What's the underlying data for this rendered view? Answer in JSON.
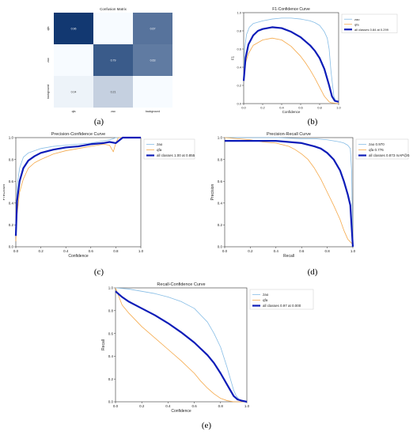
{
  "captions": {
    "a": "(a)",
    "b": "(b)",
    "c": "(c)",
    "d": "(d)",
    "e": "(e)"
  },
  "chart_data": [
    {
      "id": "a",
      "type": "heatmap",
      "title": "Confusion Matrix",
      "xlabel": "",
      "ylabel": "",
      "categories": [
        "qfa",
        "zao",
        "background"
      ],
      "values": [
        [
          0.96,
          0.0,
          0.67
        ],
        [
          0.0,
          0.79,
          0.63
        ],
        [
          0.04,
          0.21,
          0.0
        ]
      ],
      "color_scale": [
        "#f7fbff",
        "#08306b"
      ]
    },
    {
      "id": "b",
      "type": "line",
      "title": "F1-Confidence Curve",
      "xlabel": "Confidence",
      "ylabel": "F1",
      "xlim": [
        0,
        1
      ],
      "ylim": [
        0,
        1
      ],
      "xticks": [
        "0.0",
        "0.2",
        "0.4",
        "0.6",
        "0.8",
        "1.0"
      ],
      "yticks": [
        "0.0",
        "0.2",
        "0.4",
        "0.6",
        "0.8",
        "1.0"
      ],
      "series": [
        {
          "name": "zao",
          "color": "#87bde6",
          "width": 0.8,
          "x": [
            0,
            0.01,
            0.03,
            0.06,
            0.1,
            0.2,
            0.3,
            0.4,
            0.5,
            0.6,
            0.7,
            0.75,
            0.8,
            0.85,
            0.88,
            0.9,
            0.92,
            0.95,
            0.97,
            1.0
          ],
          "y": [
            0.28,
            0.6,
            0.76,
            0.84,
            0.88,
            0.91,
            0.93,
            0.94,
            0.94,
            0.93,
            0.91,
            0.89,
            0.86,
            0.79,
            0.72,
            0.6,
            0.35,
            0.08,
            0.03,
            0.02
          ]
        },
        {
          "name": "qfa",
          "color": "#f5a94a",
          "width": 0.8,
          "x": [
            0,
            0.02,
            0.05,
            0.1,
            0.2,
            0.3,
            0.4,
            0.5,
            0.6,
            0.65,
            0.7,
            0.75,
            0.8,
            0.85,
            0.9,
            0.92,
            1.0
          ],
          "y": [
            0.25,
            0.45,
            0.55,
            0.64,
            0.7,
            0.72,
            0.7,
            0.63,
            0.52,
            0.45,
            0.37,
            0.28,
            0.18,
            0.08,
            0.02,
            0.01,
            0.0
          ]
        },
        {
          "name": "all classes 0.84 at 0.299",
          "color": "#0d1cb8",
          "width": 2.2,
          "x": [
            0,
            0.02,
            0.05,
            0.1,
            0.15,
            0.2,
            0.3,
            0.4,
            0.5,
            0.6,
            0.7,
            0.75,
            0.8,
            0.85,
            0.9,
            0.93,
            0.96,
            1.0
          ],
          "y": [
            0.25,
            0.5,
            0.65,
            0.75,
            0.8,
            0.82,
            0.84,
            0.83,
            0.79,
            0.73,
            0.64,
            0.58,
            0.5,
            0.38,
            0.2,
            0.08,
            0.03,
            0.02
          ]
        }
      ],
      "legend": "top-right",
      "grid": false
    },
    {
      "id": "c",
      "type": "line",
      "title": "Precision-Confidence Curve",
      "xlabel": "Confidence",
      "ylabel": "Precision",
      "xlim": [
        0,
        1
      ],
      "ylim": [
        0,
        1
      ],
      "xticks": [
        "0.0",
        "0.2",
        "0.4",
        "0.6",
        "0.8",
        "1.0"
      ],
      "yticks": [
        "0.0",
        "0.2",
        "0.4",
        "0.6",
        "0.8",
        "1.0"
      ],
      "series": [
        {
          "name": "zao",
          "color": "#87bde6",
          "width": 0.8,
          "x": [
            0,
            0.01,
            0.03,
            0.06,
            0.1,
            0.2,
            0.3,
            0.4,
            0.5,
            0.6,
            0.7,
            0.75,
            0.78,
            0.8,
            1.0
          ],
          "y": [
            0.18,
            0.55,
            0.72,
            0.82,
            0.86,
            0.9,
            0.92,
            0.93,
            0.94,
            0.95,
            0.97,
            0.98,
            0.99,
            1.0,
            1.0
          ]
        },
        {
          "name": "qfa",
          "color": "#f5a94a",
          "width": 0.8,
          "x": [
            0,
            0.01,
            0.03,
            0.06,
            0.1,
            0.15,
            0.2,
            0.3,
            0.4,
            0.5,
            0.6,
            0.7,
            0.75,
            0.78,
            0.8,
            0.82,
            1.0
          ],
          "y": [
            0.05,
            0.3,
            0.5,
            0.62,
            0.72,
            0.77,
            0.8,
            0.85,
            0.88,
            0.9,
            0.92,
            0.94,
            0.93,
            0.87,
            0.95,
            1.0,
            1.0
          ]
        },
        {
          "name": "all classes 1.00 at 0.855",
          "color": "#0d1cb8",
          "width": 2.2,
          "x": [
            0,
            0.01,
            0.03,
            0.06,
            0.1,
            0.15,
            0.2,
            0.3,
            0.4,
            0.5,
            0.6,
            0.7,
            0.75,
            0.8,
            0.855,
            1.0
          ],
          "y": [
            0.1,
            0.42,
            0.6,
            0.72,
            0.79,
            0.83,
            0.86,
            0.89,
            0.91,
            0.92,
            0.94,
            0.95,
            0.96,
            0.95,
            1.0,
            1.0
          ]
        }
      ],
      "legend": "top-right",
      "grid": false
    },
    {
      "id": "d",
      "type": "line",
      "title": "Precision-Recall Curve",
      "xlabel": "Recall",
      "ylabel": "Precision",
      "xlim": [
        0,
        1
      ],
      "ylim": [
        0,
        1
      ],
      "xticks": [
        "0.0",
        "0.2",
        "0.4",
        "0.6",
        "0.8",
        "1.0"
      ],
      "yticks": [
        "0.0",
        "0.2",
        "0.4",
        "0.6",
        "0.8",
        "1.0"
      ],
      "series": [
        {
          "name": "zao 0.970",
          "color": "#87bde6",
          "width": 0.8,
          "x": [
            0,
            0.2,
            0.4,
            0.6,
            0.7,
            0.8,
            0.85,
            0.9,
            0.93,
            0.96,
            0.98,
            0.99,
            1.0
          ],
          "y": [
            1.0,
            1.0,
            1.0,
            0.99,
            0.99,
            0.98,
            0.97,
            0.96,
            0.95,
            0.93,
            0.9,
            0.7,
            0.0
          ]
        },
        {
          "name": "qfa 0.776",
          "color": "#f5a94a",
          "width": 0.8,
          "x": [
            0,
            0.1,
            0.2,
            0.3,
            0.4,
            0.5,
            0.55,
            0.6,
            0.65,
            0.7,
            0.75,
            0.8,
            0.85,
            0.9,
            0.93,
            0.96,
            1.0
          ],
          "y": [
            1.0,
            0.99,
            0.98,
            0.96,
            0.95,
            0.92,
            0.89,
            0.85,
            0.8,
            0.72,
            0.62,
            0.5,
            0.38,
            0.25,
            0.15,
            0.07,
            0.02
          ]
        },
        {
          "name": "all classes 0.873 mAP@0.5",
          "color": "#0d1cb8",
          "width": 2.2,
          "x": [
            0,
            0.2,
            0.4,
            0.5,
            0.6,
            0.7,
            0.75,
            0.8,
            0.85,
            0.9,
            0.93,
            0.96,
            0.98,
            1.0
          ],
          "y": [
            0.97,
            0.97,
            0.97,
            0.96,
            0.95,
            0.92,
            0.9,
            0.86,
            0.8,
            0.7,
            0.6,
            0.48,
            0.38,
            0.0
          ]
        }
      ],
      "legend": "top-right",
      "grid": false
    },
    {
      "id": "e",
      "type": "line",
      "title": "Recall-Confidence Curve",
      "xlabel": "Confidence",
      "ylabel": "Recall",
      "xlim": [
        0,
        1
      ],
      "ylim": [
        0,
        1
      ],
      "xticks": [
        "0.0",
        "0.2",
        "0.4",
        "0.6",
        "0.8",
        "1.0"
      ],
      "yticks": [
        "0.0",
        "0.2",
        "0.4",
        "0.6",
        "0.8",
        "1.0"
      ],
      "series": [
        {
          "name": "zao",
          "color": "#87bde6",
          "width": 0.8,
          "x": [
            0,
            0.1,
            0.2,
            0.3,
            0.4,
            0.5,
            0.6,
            0.7,
            0.75,
            0.8,
            0.85,
            0.88,
            0.9,
            0.92,
            0.95,
            1.0
          ],
          "y": [
            1.0,
            0.99,
            0.97,
            0.95,
            0.92,
            0.88,
            0.82,
            0.7,
            0.6,
            0.48,
            0.3,
            0.18,
            0.1,
            0.05,
            0.01,
            0.0
          ]
        },
        {
          "name": "qfa",
          "color": "#f5a94a",
          "width": 0.8,
          "x": [
            0,
            0.05,
            0.1,
            0.2,
            0.3,
            0.4,
            0.5,
            0.6,
            0.65,
            0.7,
            0.75,
            0.8,
            0.85,
            0.9,
            1.0
          ],
          "y": [
            1.0,
            0.85,
            0.78,
            0.66,
            0.56,
            0.46,
            0.36,
            0.25,
            0.18,
            0.12,
            0.07,
            0.03,
            0.01,
            0.0,
            0.0
          ]
        },
        {
          "name": "all classes 0.97 at 0.000",
          "color": "#0d1cb8",
          "width": 2.2,
          "x": [
            0,
            0.05,
            0.1,
            0.2,
            0.3,
            0.4,
            0.5,
            0.6,
            0.7,
            0.75,
            0.8,
            0.85,
            0.88,
            0.9,
            0.93,
            0.96,
            1.0
          ],
          "y": [
            0.97,
            0.92,
            0.88,
            0.82,
            0.76,
            0.69,
            0.61,
            0.52,
            0.41,
            0.34,
            0.25,
            0.15,
            0.09,
            0.05,
            0.02,
            0.01,
            0.0
          ]
        }
      ],
      "legend": "top-right",
      "grid": false
    }
  ]
}
